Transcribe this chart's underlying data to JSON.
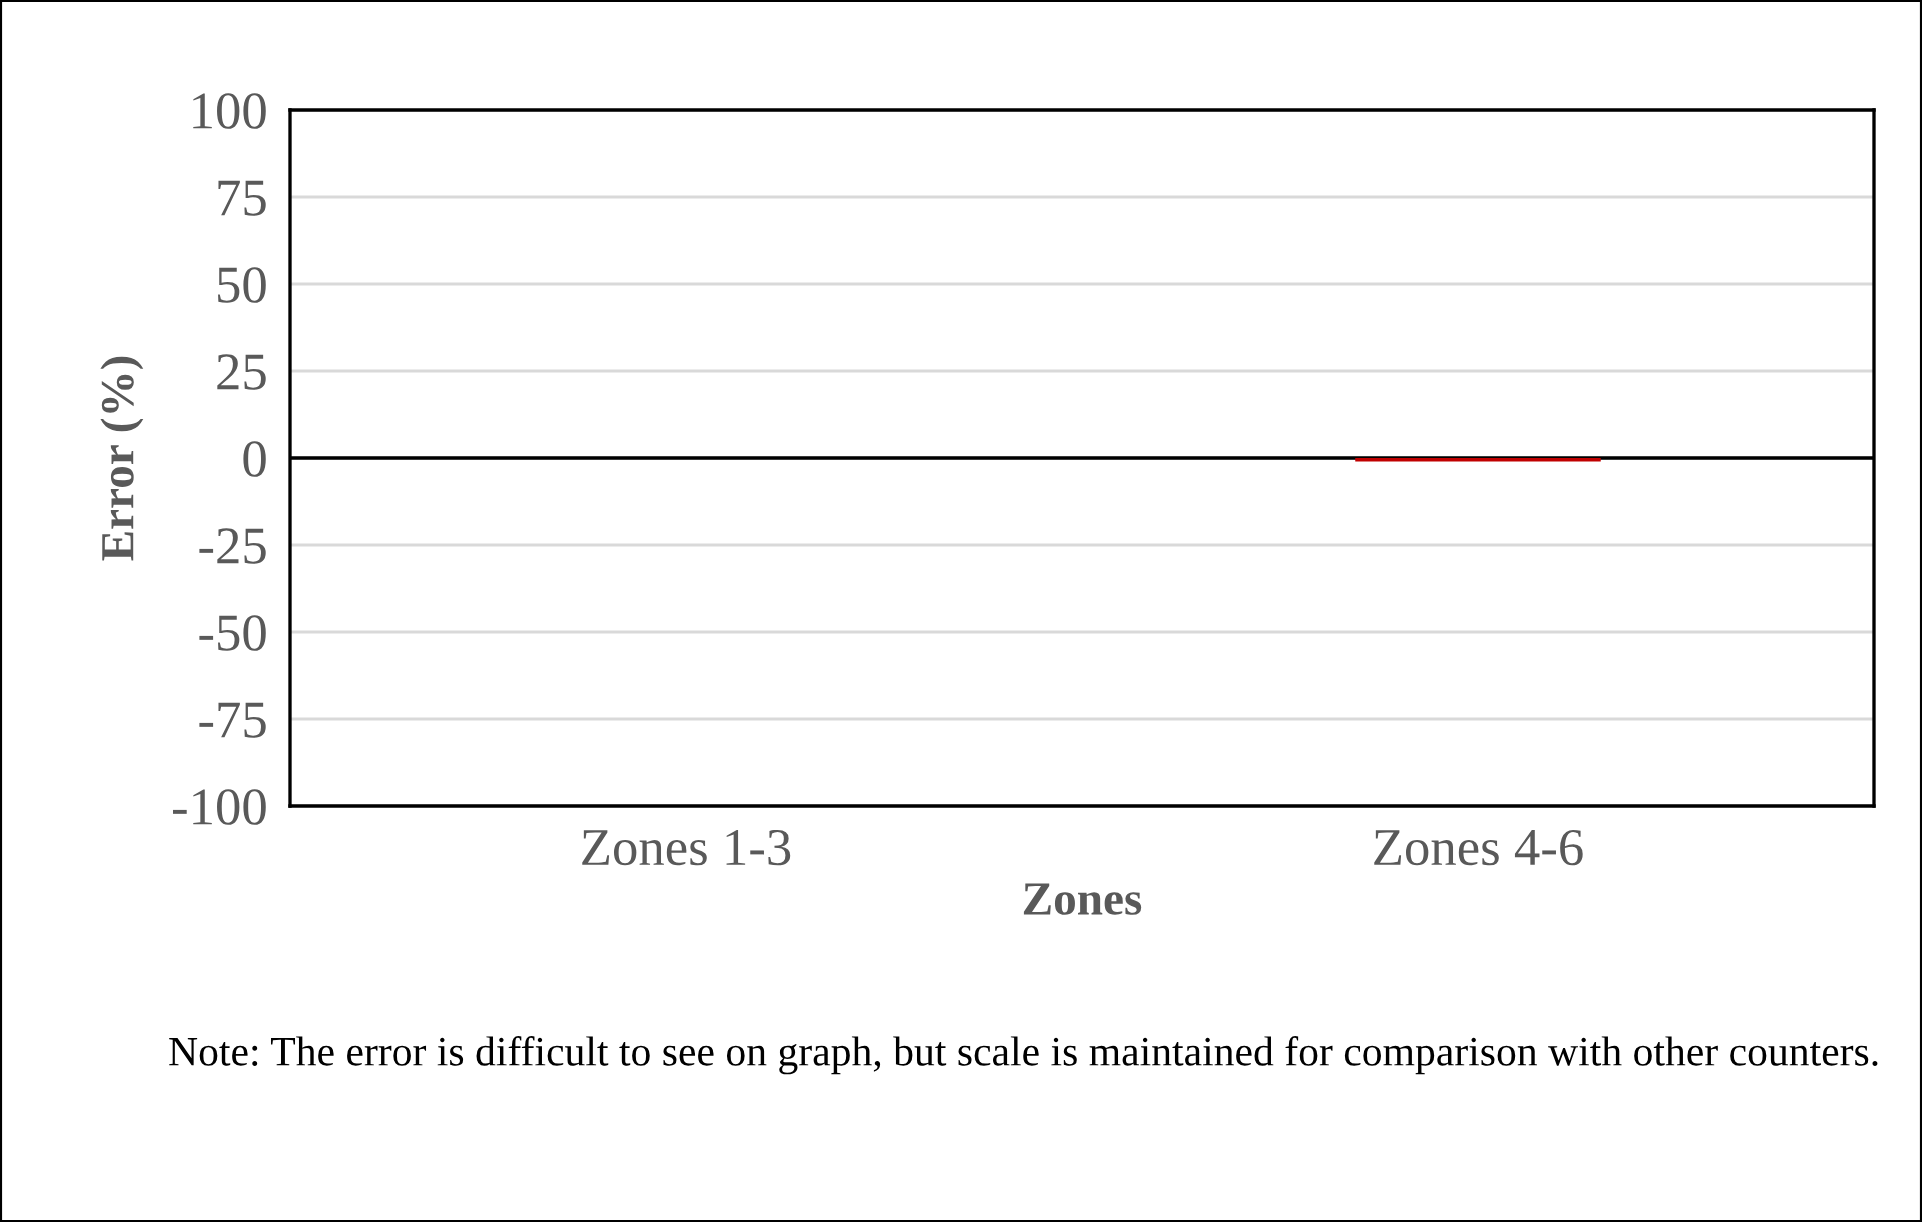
{
  "chart_data": {
    "type": "bar",
    "xlabel": "Zones",
    "ylabel": "Error (%)",
    "categories": [
      "Zones 1-3",
      "Zones 4-6"
    ],
    "series": [
      {
        "color": "#c00000",
        "values": [
          0,
          -1
        ]
      }
    ],
    "ylim": [
      -100,
      100
    ],
    "yticks": [
      -100,
      -75,
      -50,
      -25,
      0,
      25,
      50,
      75,
      100
    ],
    "grid": "y",
    "ref_lines": [
      {
        "axis": "y",
        "value": 0,
        "color": "#000000"
      }
    ],
    "annotations": [
      "Note: The error is difficult to see on graph, but scale is maintained for comparison with other counters."
    ]
  }
}
